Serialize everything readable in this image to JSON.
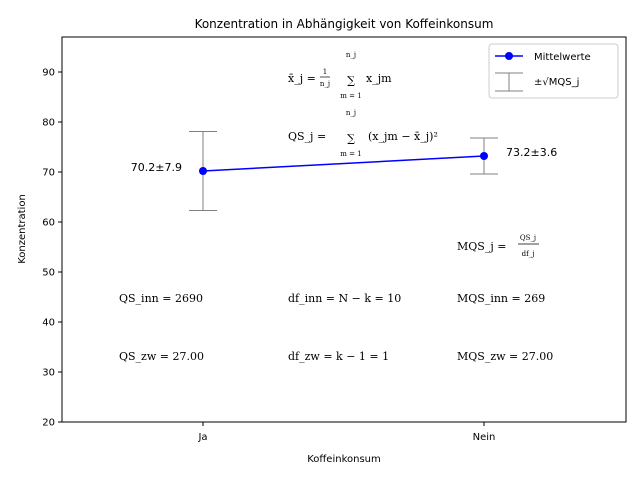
{
  "chart_data": {
    "type": "line",
    "title": "Konzentration in Abhängigkeit von Koffeinkonsum",
    "xlabel": "Koffeinkonsum",
    "ylabel": "Konzentration",
    "categories": [
      "Ja",
      "Nein"
    ],
    "ylim": [
      20,
      97
    ],
    "yticks": [
      20,
      30,
      40,
      50,
      60,
      70,
      80,
      90
    ],
    "grid": false,
    "legend_position": "top-right",
    "series": [
      {
        "name": "Mittelwerte",
        "values": [
          70.2,
          73.2
        ],
        "errors": [
          7.9,
          3.6
        ],
        "color": "#0000ff"
      }
    ],
    "errorbar_color": "#808080",
    "errorbar_legend_label": "±√MQS_j",
    "point_labels": [
      "70.2±7.9",
      "73.2±3.6"
    ],
    "formulas": {
      "mean_lhs": "x̄_j =",
      "mean_frac_num": "1",
      "mean_frac_den": "n_j",
      "mean_sum_top": "n_j",
      "mean_sum_bottom": "m = 1",
      "mean_rhs": "x_jm",
      "qs_lhs": "QS_j =",
      "qs_sum_top": "n_j",
      "qs_sum_bottom": "m = 1",
      "qs_rhs": "(x_jm − x̄_j)²",
      "mqs_lhs": "MQS_j =",
      "mqs_num": "QS_j",
      "mqs_den": "df_j",
      "qs_inn": "QS_inn = 2690",
      "df_inn": "df_inn = N − k = 10",
      "mqs_inn": "MQS_inn = 269",
      "qs_zw": "QS_zw = 27.00",
      "df_zw": "df_zw = k − 1 = 1",
      "mqs_zw": "MQS_zw = 27.00"
    }
  }
}
